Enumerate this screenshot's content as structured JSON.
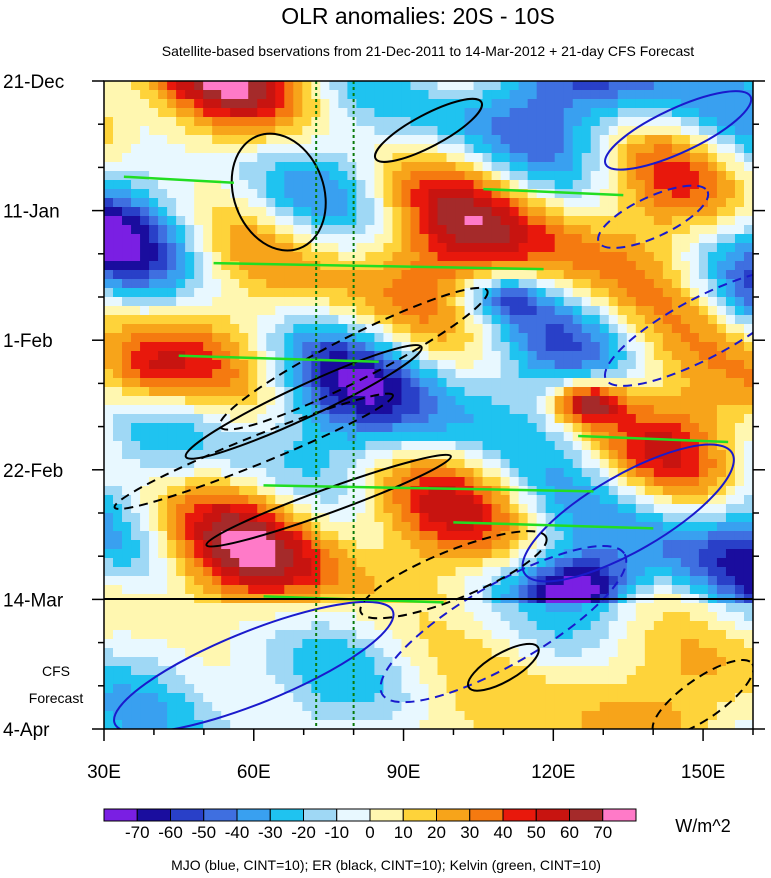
{
  "chart_data": {
    "type": "heatmap",
    "title": "OLR anomalies: 20S - 10S",
    "subtitle": "Satellite-based bservations from 21-Dec-2011 to 14-Mar-2012 + 21-day CFS Forecast",
    "x_axis": {
      "ticks": [
        30,
        60,
        90,
        120,
        150
      ],
      "tick_labels": [
        "30E",
        "60E",
        "90E",
        "120E",
        "150E"
      ],
      "range": [
        30,
        160
      ]
    },
    "y_axis": {
      "ticks": [
        "21-Dec",
        "11-Jan",
        "1-Feb",
        "22-Feb",
        "14-Mar",
        "4-Apr"
      ],
      "tick_labels": [
        "21-Dec",
        "11-Jan",
        "1-Feb",
        "22-Feb",
        "14-Mar",
        "4-Apr"
      ],
      "range_days": [
        0,
        105
      ],
      "direction": "time increases downward"
    },
    "forecast_label": [
      "CFS",
      "Forecast"
    ],
    "forecast_start": "14-Mar",
    "reference_lines_lon": [
      72.5,
      80
    ],
    "colorbar": {
      "levels": [
        -70,
        -60,
        -50,
        -40,
        -30,
        -20,
        -10,
        0,
        10,
        20,
        30,
        40,
        50,
        60,
        70
      ],
      "colors": [
        "#7a1fe3",
        "#1a0d9e",
        "#2940c8",
        "#3f6fe0",
        "#39a0f0",
        "#1fc3f0",
        "#9fd8f5",
        "#e8f8ff",
        "#fff7b0",
        "#fed33a",
        "#f7a41a",
        "#f57a10",
        "#e8180c",
        "#c81410",
        "#a52a2a",
        "#ff7ac8"
      ],
      "units": "W/m^2"
    },
    "contours": {
      "MJO": {
        "color": "#1a1acc",
        "cint": 10
      },
      "ER": {
        "color": "#000000",
        "cint": 10
      },
      "Kelvin": {
        "color": "#22dd22",
        "cint": 10
      }
    },
    "footnote": "MJO (blue, CINT=10); ER (black, CINT=10); Kelvin (green, CINT=10)"
  }
}
